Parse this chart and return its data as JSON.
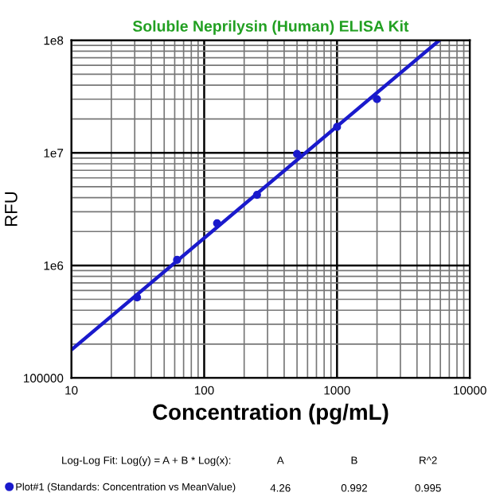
{
  "chart_data": {
    "type": "scatter",
    "title": "Soluble Neprilysin (Human) ELISA Kit",
    "xlabel": "Concentration (pg/mL)",
    "ylabel": "RFU",
    "log": "xy",
    "grid": true,
    "legend": "bottom left",
    "marker": "circle",
    "xlim": [
      10,
      10000
    ],
    "ylim": [
      100000,
      100000000
    ],
    "xticks": [
      10,
      100,
      1000,
      10000
    ],
    "yticks": [
      100000,
      {
        "value": 1000000,
        "label": "1e6"
      },
      {
        "value": 10000000,
        "label": "1e7"
      },
      {
        "value": 100000000,
        "label": "1e8"
      }
    ],
    "series": [
      {
        "name": "Plot#1 (Standards: Concentration vs MeanValue)",
        "color": "#1a1acc",
        "x": [
          31.25,
          62.5,
          125,
          250,
          500,
          1000,
          2000
        ],
        "values": [
          520000,
          1120000,
          2370000,
          4240000,
          9800000,
          17000000,
          30000000
        ]
      },
      {
        "type": "line",
        "color": "#1a1acc",
        "line_style": "solid",
        "marker": "none",
        "x": [
          10,
          5890
        ],
        "values": [
          178000,
          100000000
        ]
      }
    ],
    "annotations": [
      "Log-Log Fit: Log(y) = A + B * Log(x):",
      "A",
      "B",
      "R^2",
      "4.26",
      "0.992",
      "0.995"
    ]
  }
}
